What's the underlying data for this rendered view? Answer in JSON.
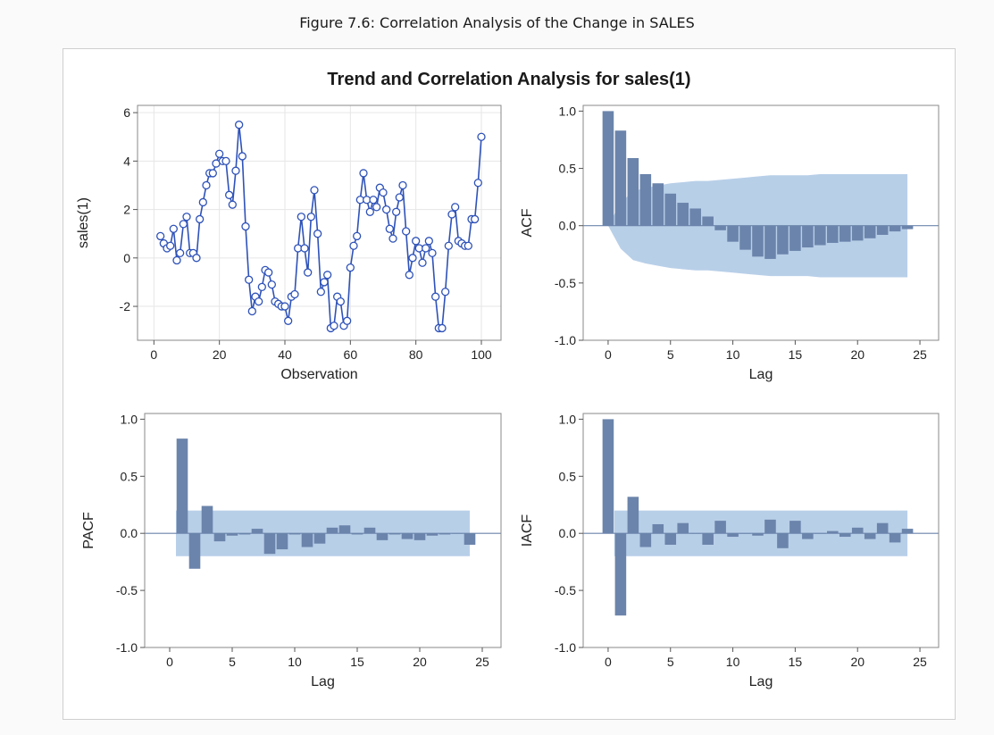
{
  "caption": "Figure 7.6: Correlation Analysis of the Change in SALES",
  "colors": {
    "line": "#2e52b8",
    "bar": "#6b84ab",
    "band": "#b8cfe8",
    "axis": "#555555",
    "grid": "#e6e6e6",
    "frame_border": "#cfcfcf"
  },
  "chart_data": {
    "title": "Trend and Correlation Analysis for sales(1)",
    "panels": [
      {
        "id": "series",
        "type": "line",
        "xlabel": "Observation",
        "ylabel": "sales(1)",
        "xlim": [
          -5,
          106
        ],
        "ylim": [
          -3.4,
          6.3
        ],
        "xticks": [
          0,
          20,
          40,
          60,
          80,
          100
        ],
        "yticks": [
          -2,
          0,
          2,
          4,
          6
        ],
        "grid": true,
        "markers": "open-circle",
        "x": [
          2,
          3,
          4,
          5,
          6,
          7,
          8,
          9,
          10,
          11,
          12,
          13,
          14,
          15,
          16,
          17,
          18,
          19,
          20,
          21,
          22,
          23,
          24,
          25,
          26,
          27,
          28,
          29,
          30,
          31,
          32,
          33,
          34,
          35,
          36,
          37,
          38,
          39,
          40,
          41,
          42,
          43,
          44,
          45,
          46,
          47,
          48,
          49,
          50,
          51,
          52,
          53,
          54,
          55,
          56,
          57,
          58,
          59,
          60,
          61,
          62,
          63,
          64,
          65,
          66,
          67,
          68,
          69,
          70,
          71,
          72,
          73,
          74,
          75,
          76,
          77,
          78,
          79,
          80,
          81,
          82,
          83,
          84,
          85,
          86,
          87,
          88,
          89,
          90,
          91,
          92,
          93,
          94,
          95,
          96,
          97,
          98,
          99,
          100
        ],
        "y": [
          0.9,
          0.6,
          0.4,
          0.5,
          1.2,
          -0.1,
          0.2,
          1.4,
          1.7,
          0.2,
          0.2,
          0.0,
          1.6,
          2.3,
          3.0,
          3.5,
          3.5,
          3.9,
          4.3,
          4.0,
          4.0,
          2.6,
          2.2,
          3.6,
          5.5,
          4.2,
          1.3,
          -0.9,
          -2.2,
          -1.6,
          -1.8,
          -1.2,
          -0.5,
          -0.6,
          -1.1,
          -1.8,
          -1.9,
          -2.0,
          -2.0,
          -2.6,
          -1.6,
          -1.5,
          0.4,
          1.7,
          0.4,
          -0.6,
          1.7,
          2.8,
          1.0,
          -1.4,
          -1.0,
          -0.7,
          -2.9,
          -2.8,
          -1.6,
          -1.8,
          -2.8,
          -2.6,
          -0.4,
          0.5,
          0.9,
          2.4,
          3.5,
          2.4,
          1.9,
          2.4,
          2.1,
          2.9,
          2.7,
          2.0,
          1.2,
          0.8,
          1.9,
          2.5,
          3.0,
          1.1,
          -0.7,
          0.0,
          0.7,
          0.4,
          -0.2,
          0.4,
          0.7,
          0.2,
          -1.6,
          -2.9,
          -2.9,
          -1.4,
          0.5,
          1.8,
          2.1,
          0.7,
          0.6,
          0.5,
          0.5,
          1.6,
          1.6,
          3.1,
          5.0
        ]
      },
      {
        "id": "acf",
        "type": "bar",
        "xlabel": "Lag",
        "ylabel": "ACF",
        "xlim": [
          -2,
          26.5
        ],
        "ylim": [
          -1.0,
          1.05
        ],
        "xticks": [
          0,
          5,
          10,
          15,
          20,
          25
        ],
        "yticks": [
          -1.0,
          -0.5,
          0.0,
          0.5,
          1.0
        ],
        "ytick_labels": [
          "-1.0",
          "-0.5",
          "0.0",
          "0.5",
          "1.0"
        ],
        "lags": [
          0,
          1,
          2,
          3,
          4,
          5,
          6,
          7,
          8,
          9,
          10,
          11,
          12,
          13,
          14,
          15,
          16,
          17,
          18,
          19,
          20,
          21,
          22,
          23,
          24
        ],
        "values": [
          1.0,
          0.83,
          0.59,
          0.45,
          0.37,
          0.28,
          0.2,
          0.15,
          0.08,
          -0.04,
          -0.14,
          -0.21,
          -0.27,
          -0.29,
          -0.25,
          -0.22,
          -0.19,
          -0.17,
          -0.15,
          -0.14,
          -0.13,
          -0.11,
          -0.08,
          -0.05,
          -0.03
        ],
        "band_upper": [
          0.0,
          0.2,
          0.3,
          0.33,
          0.35,
          0.37,
          0.38,
          0.39,
          0.39,
          0.4,
          0.41,
          0.42,
          0.43,
          0.44,
          0.44,
          0.44,
          0.44,
          0.45,
          0.45,
          0.45,
          0.45,
          0.45,
          0.45,
          0.45,
          0.45
        ]
      },
      {
        "id": "pacf",
        "type": "bar",
        "xlabel": "Lag",
        "ylabel": "PACF",
        "xlim": [
          -2,
          26.5
        ],
        "ylim": [
          -1.0,
          1.05
        ],
        "xticks": [
          0,
          5,
          10,
          15,
          20,
          25
        ],
        "yticks": [
          -1.0,
          -0.5,
          0.0,
          0.5,
          1.0
        ],
        "ytick_labels": [
          "-1.0",
          "-0.5",
          "0.0",
          "0.5",
          "1.0"
        ],
        "lags": [
          1,
          2,
          3,
          4,
          5,
          6,
          7,
          8,
          9,
          10,
          11,
          12,
          13,
          14,
          15,
          16,
          17,
          18,
          19,
          20,
          21,
          22,
          23,
          24
        ],
        "values": [
          0.83,
          -0.31,
          0.24,
          -0.07,
          -0.02,
          -0.01,
          0.04,
          -0.18,
          -0.14,
          -0.01,
          -0.12,
          -0.09,
          0.05,
          0.07,
          -0.01,
          0.05,
          -0.06,
          -0.01,
          -0.05,
          -0.06,
          -0.02,
          -0.01,
          0.0,
          -0.1
        ],
        "band_upper": 0.2,
        "band_from": 1,
        "band_to": 24
      },
      {
        "id": "iacf",
        "type": "bar",
        "xlabel": "Lag",
        "ylabel": "IACF",
        "xlim": [
          -2,
          26.5
        ],
        "ylim": [
          -1.0,
          1.05
        ],
        "xticks": [
          0,
          5,
          10,
          15,
          20,
          25
        ],
        "yticks": [
          -1.0,
          -0.5,
          0.0,
          0.5,
          1.0
        ],
        "ytick_labels": [
          "-1.0",
          "-0.5",
          "0.0",
          "0.5",
          "1.0"
        ],
        "lags": [
          0,
          1,
          2,
          3,
          4,
          5,
          6,
          7,
          8,
          9,
          10,
          11,
          12,
          13,
          14,
          15,
          16,
          17,
          18,
          19,
          20,
          21,
          22,
          23,
          24
        ],
        "values": [
          1.0,
          -0.72,
          0.32,
          -0.12,
          0.08,
          -0.1,
          0.09,
          0.0,
          -0.1,
          0.11,
          -0.03,
          0.0,
          -0.02,
          0.12,
          -0.13,
          0.11,
          -0.05,
          0.0,
          0.02,
          -0.03,
          0.05,
          -0.05,
          0.09,
          -0.08,
          0.04
        ],
        "band_upper": 0.2,
        "band_from": 1,
        "band_to": 24
      }
    ]
  }
}
